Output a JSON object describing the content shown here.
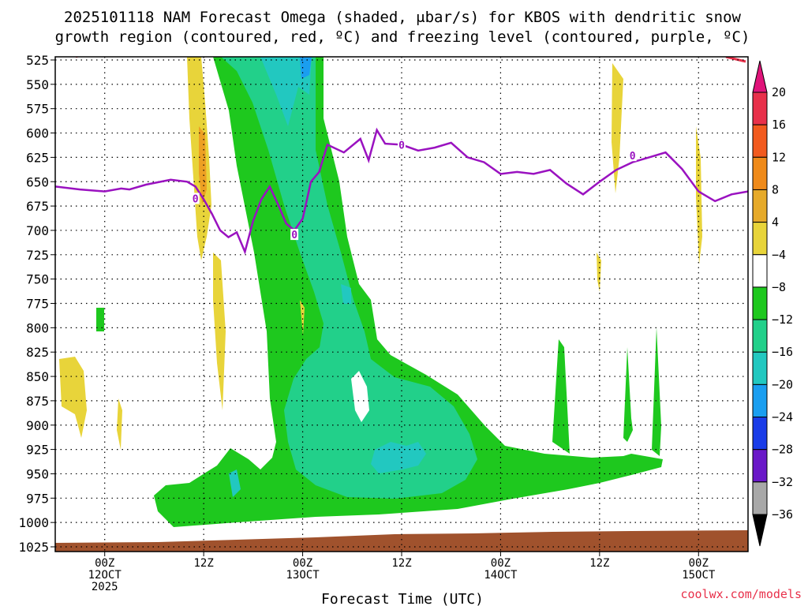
{
  "chart_data": {
    "type": "heatmap",
    "title_line1": "2025101118 NAM Forecast Omega (shaded, μbar/s) for KBOS with dendritic snow",
    "title_line2": "growth region (contoured, red, ºC) and freezing level (contoured, purple, ºC)",
    "xlabel": "Forecast Time (UTC)",
    "credit": "coolwx.com/models",
    "y_ticks": [
      "525",
      "550",
      "575",
      "600",
      "625",
      "650",
      "675",
      "700",
      "725",
      "750",
      "775",
      "800",
      "825",
      "850",
      "875",
      "900",
      "925",
      "950",
      "975",
      "1000",
      "1025"
    ],
    "y_range_mb": [
      525,
      1025
    ],
    "x_range_hours_from_start": [
      0,
      84
    ],
    "x_ticks": [
      {
        "hour": 6,
        "line1": "00Z",
        "line2": "12OCT",
        "line3": "2025"
      },
      {
        "hour": 18,
        "line1": "12Z",
        "line2": "",
        "line3": ""
      },
      {
        "hour": 30,
        "line1": "00Z",
        "line2": "13OCT",
        "line3": ""
      },
      {
        "hour": 42,
        "line1": "12Z",
        "line2": "",
        "line3": ""
      },
      {
        "hour": 54,
        "line1": "00Z",
        "line2": "14OCT",
        "line3": ""
      },
      {
        "hour": 66,
        "line1": "12Z",
        "line2": "",
        "line3": ""
      },
      {
        "hour": 78,
        "line1": "00Z",
        "line2": "15OCT",
        "line3": ""
      }
    ],
    "colorbar_labels": [
      "20",
      "16",
      "12",
      "8",
      "4",
      "−4",
      "−8",
      "−12",
      "−16",
      "−20",
      "−24",
      "−28",
      "−32",
      "−36"
    ],
    "colorbar_colors": [
      "#e8304a",
      "#f25a1e",
      "#ef8a1a",
      "#e6aa2a",
      "#e8d43a",
      "#ffffff",
      "#1ec81e",
      "#22d08a",
      "#22c8c0",
      "#1a9ef0",
      "#1a3ce8",
      "#6a18c8",
      "#9a12b8",
      "#a8a8a8"
    ],
    "colorbar_top_color": "#e0147a",
    "colorbar_bottom_color": "#000000",
    "freezing_level_label": "0",
    "freezing_level_color": "#9a12c0",
    "dgz_color": "#e8304a",
    "ground_color": "#a0522d",
    "freezing_level": {
      "x": [
        0,
        3,
        6,
        8,
        9,
        11,
        14,
        16,
        17,
        18,
        19,
        20,
        21,
        22,
        23,
        24,
        25,
        26,
        27,
        28,
        29,
        30,
        31,
        32,
        33,
        35,
        37,
        38,
        39,
        40,
        42,
        44,
        46,
        48,
        50,
        52,
        54,
        56,
        58,
        60,
        62,
        64,
        66,
        68,
        70,
        72,
        74,
        76,
        78,
        80,
        82,
        84
      ],
      "p": [
        655,
        658,
        660,
        657,
        658,
        653,
        648,
        650,
        655,
        668,
        683,
        700,
        707,
        702,
        722,
        690,
        668,
        655,
        673,
        693,
        700,
        688,
        650,
        640,
        612,
        620,
        606,
        628,
        597,
        611,
        612,
        618,
        615,
        610,
        625,
        630,
        642,
        640,
        642,
        638,
        652,
        663,
        650,
        638,
        630,
        625,
        620,
        637,
        660,
        670,
        663,
        660
      ]
    },
    "label_points": [
      {
        "x": 17,
        "p": 668
      },
      {
        "x": 29,
        "p": 705
      },
      {
        "x": 42,
        "p": 613
      },
      {
        "x": 70,
        "p": 624
      }
    ]
  }
}
